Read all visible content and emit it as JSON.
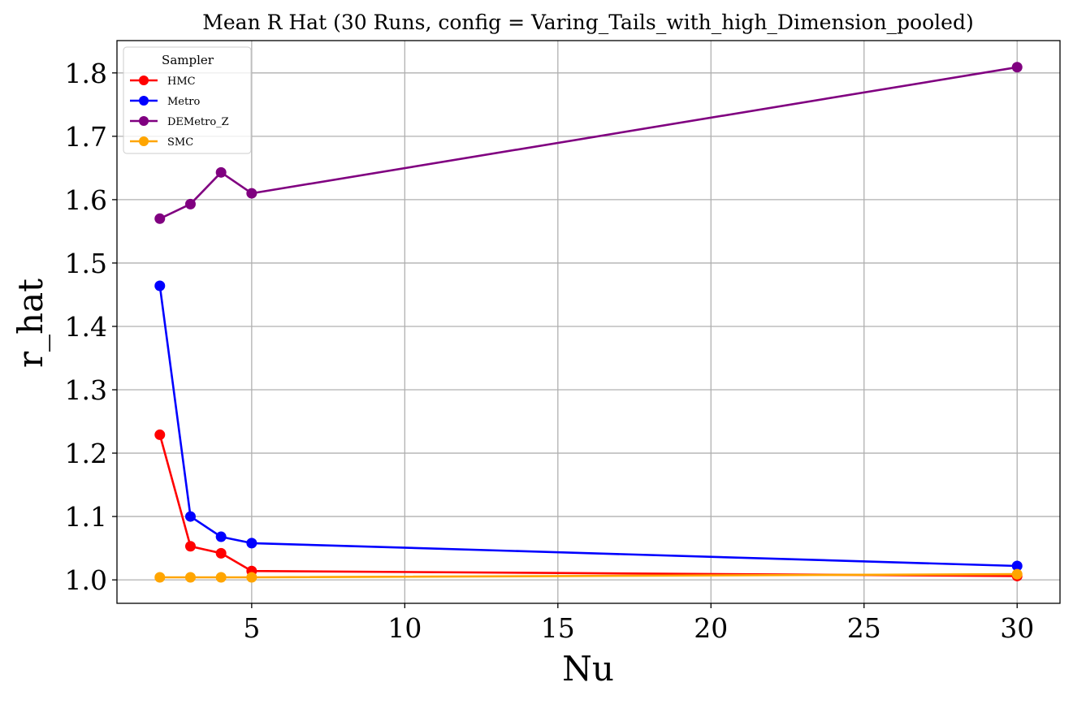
{
  "chart_data": {
    "type": "line",
    "title": "Mean R Hat (30 Runs, config = Varing_Tails_with_high_Dimension_pooled)",
    "xlabel": "Nu",
    "ylabel": "r_hat",
    "xlim": [
      0.6,
      31.4
    ],
    "ylim": [
      0.963,
      1.851
    ],
    "xticks": [
      5,
      10,
      15,
      20,
      25,
      30
    ],
    "xtick_labels": [
      "5",
      "10",
      "15",
      "20",
      "25",
      "30"
    ],
    "yticks": [
      1.0,
      1.1,
      1.2,
      1.3,
      1.4,
      1.5,
      1.6,
      1.7,
      1.8
    ],
    "ytick_labels": [
      "1.0",
      "1.1",
      "1.2",
      "1.3",
      "1.4",
      "1.5",
      "1.6",
      "1.7",
      "1.8"
    ],
    "grid": true,
    "legend": {
      "title": "Sampler",
      "placement": "top-left"
    },
    "x": [
      2,
      3,
      4,
      5,
      30
    ],
    "series": [
      {
        "name": "HMC",
        "color": "#ff0000",
        "values": [
          1.229,
          1.053,
          1.042,
          1.014,
          1.006
        ]
      },
      {
        "name": "Metro",
        "color": "#0000ff",
        "values": [
          1.464,
          1.1,
          1.068,
          1.058,
          1.022
        ]
      },
      {
        "name": "DEMetro_Z",
        "color": "#800080",
        "values": [
          1.57,
          1.593,
          1.643,
          1.61,
          1.809
        ]
      },
      {
        "name": "SMC",
        "color": "#ffa500",
        "values": [
          1.004,
          1.004,
          1.004,
          1.004,
          1.009
        ]
      }
    ]
  }
}
